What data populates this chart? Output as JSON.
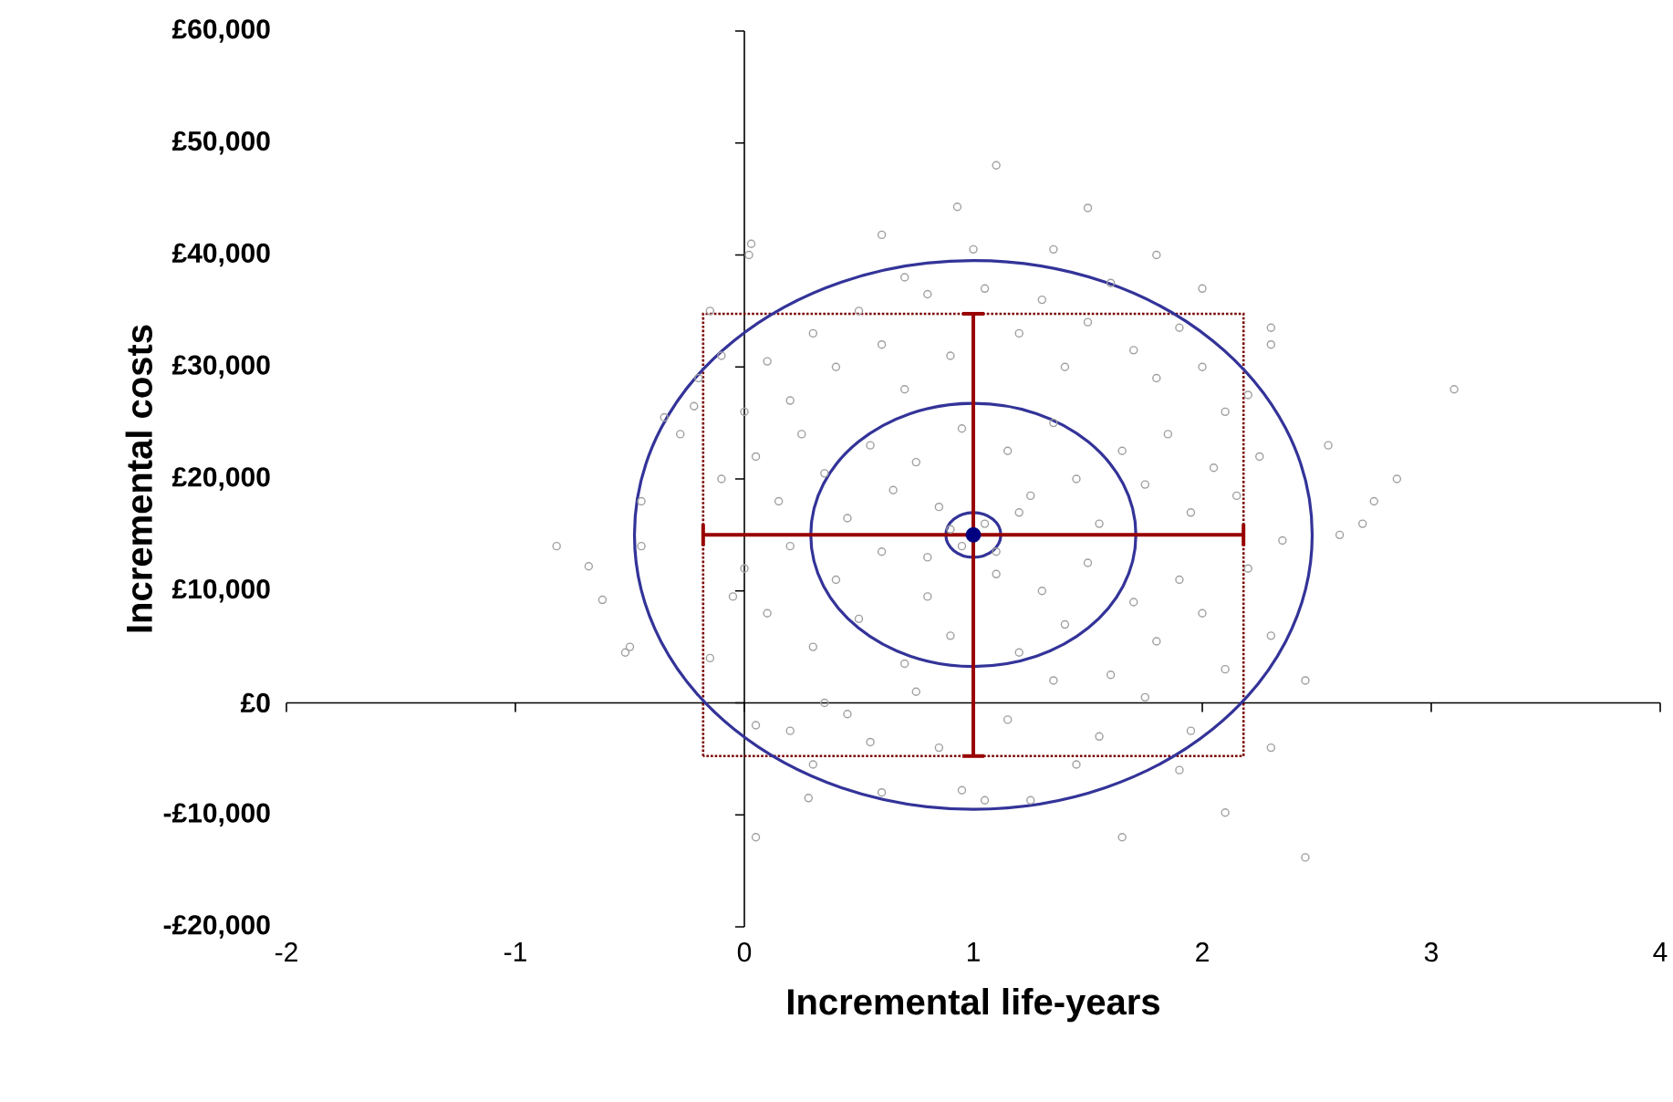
{
  "chart_data": {
    "type": "scatter",
    "xlabel": "Incremental life-years",
    "ylabel": "Incremental costs",
    "xlim": [
      -2,
      4
    ],
    "xticks": [
      -2,
      -1,
      0,
      1,
      2,
      3,
      4
    ],
    "ylim": [
      -20000,
      60000
    ],
    "yticks": [
      {
        "value": -20000,
        "label": "-£20,000"
      },
      {
        "value": -10000,
        "label": "-£10,000"
      },
      {
        "value": 0,
        "label": "£0"
      },
      {
        "value": 10000,
        "label": "£10,000"
      },
      {
        "value": 20000,
        "label": "£20,000"
      },
      {
        "value": 30000,
        "label": "£30,000"
      },
      {
        "value": 40000,
        "label": "£40,000"
      },
      {
        "value": 50000,
        "label": "£50,000"
      },
      {
        "value": 60000,
        "label": "£60,000"
      }
    ],
    "series": [
      {
        "marker": "circle",
        "color": "#a0a0a0",
        "x": [
          -0.82,
          -0.68,
          -0.62,
          -0.52,
          -0.5,
          -0.45,
          -0.45,
          -0.35,
          -0.28,
          -0.22,
          -0.2,
          -0.15,
          0.03,
          0.02,
          0.2,
          0.05,
          0.28,
          0.6,
          0.95,
          1.1,
          0.93,
          0.6,
          1.5,
          1.35,
          1.65,
          1.05,
          1.25,
          2.45,
          2.3,
          2.1,
          2.45,
          2.6,
          2.7,
          2.75,
          2.85,
          3.1,
          2.55,
          2.3,
          2.3,
          2.0,
          0.1,
          0.2,
          0.3,
          0.4,
          0.5,
          0.6,
          0.7,
          0.8,
          0.9,
          1.2,
          1.3,
          1.4,
          1.5,
          1.6,
          1.7,
          1.8,
          1.9,
          2.0,
          2.1,
          0.05,
          0.15,
          0.25,
          0.35,
          0.45,
          0.55,
          0.65,
          0.75,
          0.85,
          0.95,
          1.15,
          1.25,
          1.35,
          1.45,
          1.55,
          1.65,
          1.75,
          1.85,
          1.95,
          2.05,
          2.15,
          0.0,
          0.1,
          0.2,
          0.3,
          0.4,
          0.5,
          0.6,
          0.7,
          0.8,
          0.9,
          1.1,
          1.2,
          1.3,
          1.4,
          1.5,
          1.6,
          1.7,
          1.8,
          1.9,
          2.0,
          2.1,
          0.05,
          0.35,
          0.55,
          0.75,
          0.85,
          1.15,
          1.35,
          1.55,
          1.75,
          1.95,
          0.95,
          1.05,
          0.9,
          1.1,
          0.8,
          1.2,
          -0.1,
          -0.05,
          -0.15,
          -0.1,
          0.0,
          2.2,
          2.25,
          2.3,
          2.35,
          2.2,
          1.0,
          1.05,
          0.7,
          1.8,
          0.3,
          0.45,
          1.45,
          1.9
        ],
        "values": [
          14000,
          12200,
          9200,
          4500,
          5000,
          14000,
          18000,
          25500,
          24000,
          26500,
          29000,
          35000,
          41000,
          40000,
          -2500,
          -12000,
          -8500,
          -8000,
          -7800,
          48000,
          44300,
          41800,
          44200,
          40500,
          -12000,
          -8700,
          -8700,
          -13800,
          -4000,
          -9800,
          2000,
          15000,
          16000,
          18000,
          20000,
          28000,
          23000,
          33500,
          32000,
          37000,
          30500,
          27000,
          33000,
          30000,
          35000,
          32000,
          28000,
          36500,
          31000,
          33000,
          36000,
          30000,
          34000,
          37500,
          31500,
          29000,
          33500,
          30000,
          26000,
          22000,
          18000,
          24000,
          20500,
          16500,
          23000,
          19000,
          21500,
          17500,
          24500,
          22500,
          18500,
          25000,
          20000,
          16000,
          22500,
          19500,
          24000,
          17000,
          21000,
          18500,
          12000,
          8000,
          14000,
          5000,
          11000,
          7500,
          13500,
          3500,
          9500,
          6000,
          11500,
          4500,
          10000,
          7000,
          12500,
          2500,
          9000,
          5500,
          11000,
          8000,
          3000,
          -2000,
          0,
          -3500,
          1000,
          -4000,
          -1500,
          2000,
          -3000,
          500,
          -2500,
          14000,
          16000,
          15500,
          13500,
          13000,
          17000,
          20000,
          9500,
          4000,
          31000,
          26000,
          12000,
          22000,
          6000,
          14500,
          27500,
          40500,
          37000,
          38000,
          40000,
          -5500,
          -1000,
          -5500,
          -6000
        ]
      },
      {
        "marker": "circle",
        "color": "#000080",
        "x": [
          1
        ],
        "values": [
          15000
        ],
        "errors": [
          19750
        ],
        "xerrors": [
          1.18
        ]
      }
    ]
  }
}
